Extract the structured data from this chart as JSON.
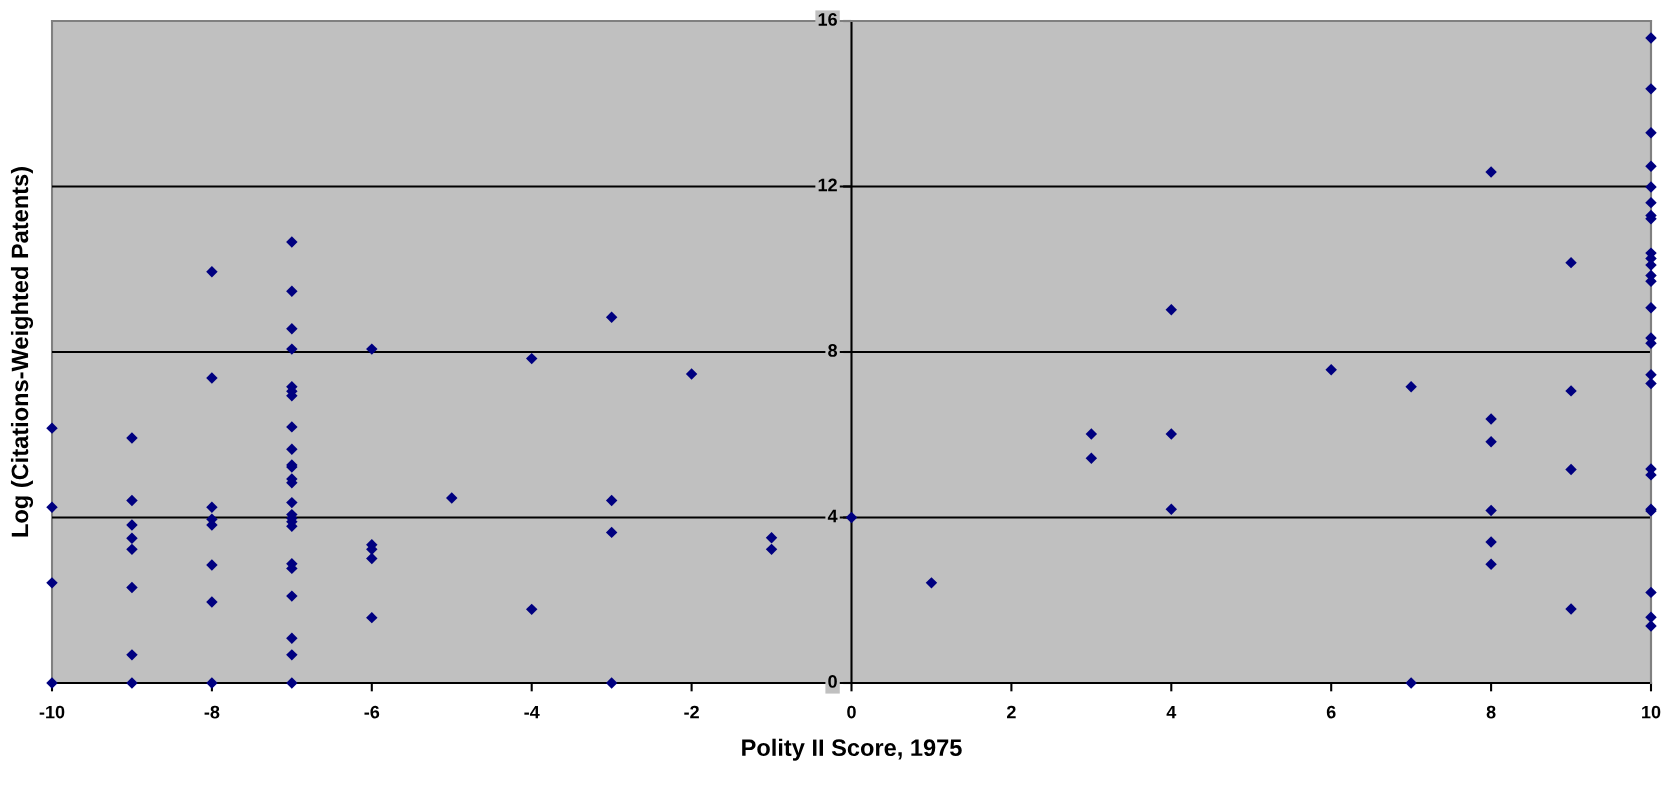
{
  "chart_data": {
    "type": "scatter",
    "xlabel": "Polity II Score, 1975",
    "ylabel": "Log (Citations-Weighted Patents)",
    "xlim": [
      -10,
      10
    ],
    "xticks": [
      -10,
      -8,
      -6,
      -4,
      -2,
      0,
      2,
      4,
      6,
      8,
      10
    ],
    "ylim": [
      0,
      16
    ],
    "yticks": [
      0,
      4,
      8,
      12,
      16
    ],
    "grid": "y",
    "marker": "diamond",
    "series": [
      {
        "color": "#000080",
        "x": [
          -10,
          -10,
          -10,
          -10,
          -9,
          -9,
          -9,
          -9,
          -9,
          -9,
          -9,
          -9,
          -8,
          -8,
          -8,
          -8,
          -8,
          -8,
          -8,
          -8,
          -7,
          -7,
          -7,
          -7,
          -7,
          -7,
          -7,
          -7,
          -7,
          -7,
          -7,
          -7,
          -7,
          -7,
          -7,
          -7,
          -7,
          -7,
          -7,
          -7,
          -7,
          -7,
          -7,
          -7,
          -6,
          -6,
          -6,
          -6,
          -6,
          -5,
          -4,
          -4,
          -3,
          -3,
          -3,
          -3,
          -2,
          -1,
          -1,
          0,
          1,
          3,
          3,
          4,
          4,
          4,
          6,
          7,
          7,
          8,
          8,
          8,
          8,
          8,
          8,
          9,
          9,
          9,
          9,
          10,
          10,
          10,
          10,
          10,
          10,
          10,
          10,
          10,
          10,
          10,
          10,
          10,
          10,
          10,
          10,
          10,
          10,
          10,
          10,
          10,
          10,
          10,
          10,
          10
        ],
        "values": [
          6.16,
          4.25,
          2.42,
          0,
          5.92,
          4.41,
          3.82,
          3.5,
          3.23,
          2.31,
          0.68,
          0,
          9.94,
          7.37,
          4.25,
          3.96,
          3.82,
          2.85,
          1.96,
          0,
          10.66,
          9.47,
          8.56,
          8.07,
          7.16,
          7.05,
          6.94,
          6.19,
          5.65,
          5.27,
          5.22,
          4.93,
          4.84,
          4.36,
          4.07,
          3.98,
          3.9,
          3.79,
          2.88,
          2.77,
          2.1,
          1.08,
          0.68,
          0,
          8.07,
          3.34,
          3.23,
          3.01,
          1.58,
          4.47,
          7.84,
          1.78,
          8.84,
          4.41,
          3.64,
          0,
          7.47,
          3.51,
          3.23,
          4.0,
          2.42,
          6.02,
          5.43,
          9.02,
          6.02,
          4.2,
          7.57,
          7.16,
          0,
          12.35,
          6.38,
          5.83,
          4.17,
          3.41,
          2.87,
          10.16,
          7.06,
          5.16,
          1.79,
          15.59,
          14.36,
          13.3,
          12.49,
          11.99,
          11.61,
          11.3,
          11.22,
          10.39,
          10.26,
          10.1,
          9.85,
          9.71,
          9.07,
          8.34,
          8.21,
          7.45,
          7.24,
          5.17,
          5.03,
          4.2,
          4.16,
          2.19,
          1.59,
          1.38
        ]
      }
    ]
  }
}
